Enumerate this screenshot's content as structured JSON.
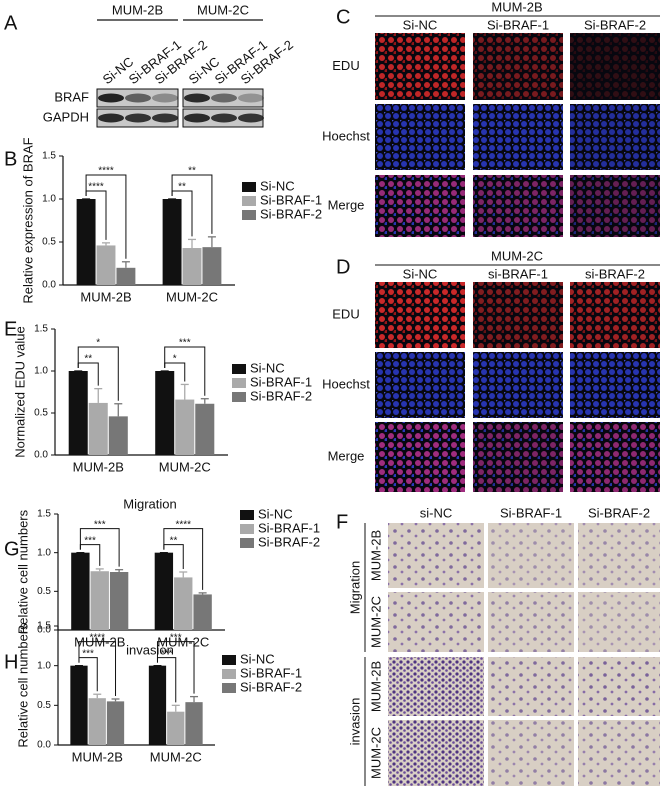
{
  "panel_letters": [
    "A",
    "B",
    "C",
    "D",
    "E",
    "F",
    "G",
    "H"
  ],
  "blot": {
    "groups": [
      "MUM-2B",
      "MUM-2C"
    ],
    "lanes": [
      "Si-NC",
      "Si-BRAF-1",
      "Si-BRAF-2"
    ],
    "rows": [
      "BRAF",
      "GAPDH"
    ]
  },
  "edu_panels": [
    {
      "title": "MUM-2B",
      "columns": [
        "Si-NC",
        "Si-BRAF-1",
        "Si-BRAF-2"
      ],
      "rows": [
        "EDU",
        "Hoechst",
        "Merge"
      ]
    },
    {
      "title": "MUM-2C",
      "columns": [
        "Si-NC",
        "si-BRAF-1",
        "si-BRAF-2"
      ],
      "rows": [
        "EDU",
        "Hoechst",
        "Merge"
      ]
    }
  ],
  "transwell": {
    "columns": [
      "si-NC",
      "Si-BRAF-1",
      "Si-BRAF-2"
    ],
    "groups": [
      {
        "name": "Migration",
        "rows": [
          "MUM-2B",
          "MUM-2C"
        ]
      },
      {
        "name": "invasion",
        "rows": [
          "MUM-2B",
          "MUM-2C"
        ]
      }
    ]
  },
  "chart_data": [
    {
      "type": "bar",
      "y_label": "Relative expression of BRAF",
      "categories": [
        "MUM-2B",
        "MUM-2C"
      ],
      "series": [
        {
          "name": "Si-NC",
          "color": "#111111",
          "values": [
            1.0,
            1.0
          ],
          "errors": [
            0,
            0
          ]
        },
        {
          "name": "Si-BRAF-1",
          "color": "#aaaaaa",
          "values": [
            0.46,
            0.43
          ],
          "errors": [
            0.03,
            0.1
          ],
          "significance": [
            "****",
            "**"
          ]
        },
        {
          "name": "Si-BRAF-2",
          "color": "#777777",
          "values": [
            0.2,
            0.44
          ],
          "errors": [
            0.07,
            0.12
          ],
          "significance": [
            "****",
            "**"
          ]
        }
      ],
      "ylim": [
        0,
        1.5
      ],
      "yticks": [
        {
          "value": 0,
          "label": "0.0"
        },
        0.5,
        {
          "value": 1,
          "label": "1.0"
        },
        1.5
      ],
      "legend": "right"
    },
    {
      "type": "bar",
      "y_label": "Normalized EDU value",
      "categories": [
        "MUM-2B",
        "MUM-2C"
      ],
      "series": [
        {
          "name": "Si-NC",
          "color": "#111111",
          "values": [
            1.0,
            1.0
          ],
          "errors": [
            0,
            0
          ]
        },
        {
          "name": "Si-BRAF-1",
          "color": "#aaaaaa",
          "values": [
            0.62,
            0.66
          ],
          "errors": [
            0.17,
            0.18
          ],
          "significance": [
            "**",
            "*"
          ]
        },
        {
          "name": "Si-BRAF-2",
          "color": "#777777",
          "values": [
            0.46,
            0.61
          ],
          "errors": [
            0.15,
            0.06
          ],
          "significance": [
            "*",
            "***"
          ]
        }
      ],
      "ylim": [
        0,
        1.5
      ],
      "yticks": [
        {
          "value": 0,
          "label": "0.0"
        },
        0.5,
        {
          "value": 1,
          "label": "1.0"
        },
        1.5
      ],
      "legend": "right"
    },
    {
      "type": "bar",
      "title": "Migration",
      "y_label": "Relative cell numbers",
      "categories": [
        "MUM-2B",
        "MUM-2C"
      ],
      "series": [
        {
          "name": "Si-NC",
          "color": "#111111",
          "values": [
            1.0,
            1.0
          ],
          "errors": [
            0,
            0
          ]
        },
        {
          "name": "Si-BRAF-1",
          "color": "#aaaaaa",
          "values": [
            0.76,
            0.68
          ],
          "errors": [
            0.03,
            0.07
          ],
          "significance": [
            "***",
            "**"
          ]
        },
        {
          "name": "Si-BRAF-2",
          "color": "#777777",
          "values": [
            0.75,
            0.46
          ],
          "errors": [
            0.03,
            0.02
          ],
          "significance": [
            "***",
            "****"
          ]
        }
      ],
      "ylim": [
        0,
        1.5
      ],
      "yticks": [
        {
          "value": 0,
          "label": "0.0"
        },
        0.5,
        {
          "value": 1,
          "label": "1.0"
        },
        1.5
      ],
      "legend": "right"
    },
    {
      "type": "bar",
      "title": "invasion",
      "y_label": "Relative cell numbers",
      "categories": [
        "MUM-2B",
        "MUM-2C"
      ],
      "series": [
        {
          "name": "Si-NC",
          "color": "#111111",
          "values": [
            1.0,
            1.0
          ],
          "errors": [
            0,
            0
          ]
        },
        {
          "name": "Si-BRAF-1",
          "color": "#aaaaaa",
          "values": [
            0.59,
            0.42
          ],
          "errors": [
            0.05,
            0.08
          ],
          "significance": [
            "***",
            "***"
          ]
        },
        {
          "name": "Si-BRAF-2",
          "color": "#777777",
          "values": [
            0.55,
            0.54
          ],
          "errors": [
            0.03,
            0.07
          ],
          "significance": [
            "****",
            "***"
          ]
        }
      ],
      "ylim": [
        0,
        1.5
      ],
      "yticks": [
        {
          "value": 0,
          "label": "0.0"
        },
        0.5,
        {
          "value": 1,
          "label": "1.0"
        },
        1.5
      ],
      "legend": "right"
    }
  ]
}
